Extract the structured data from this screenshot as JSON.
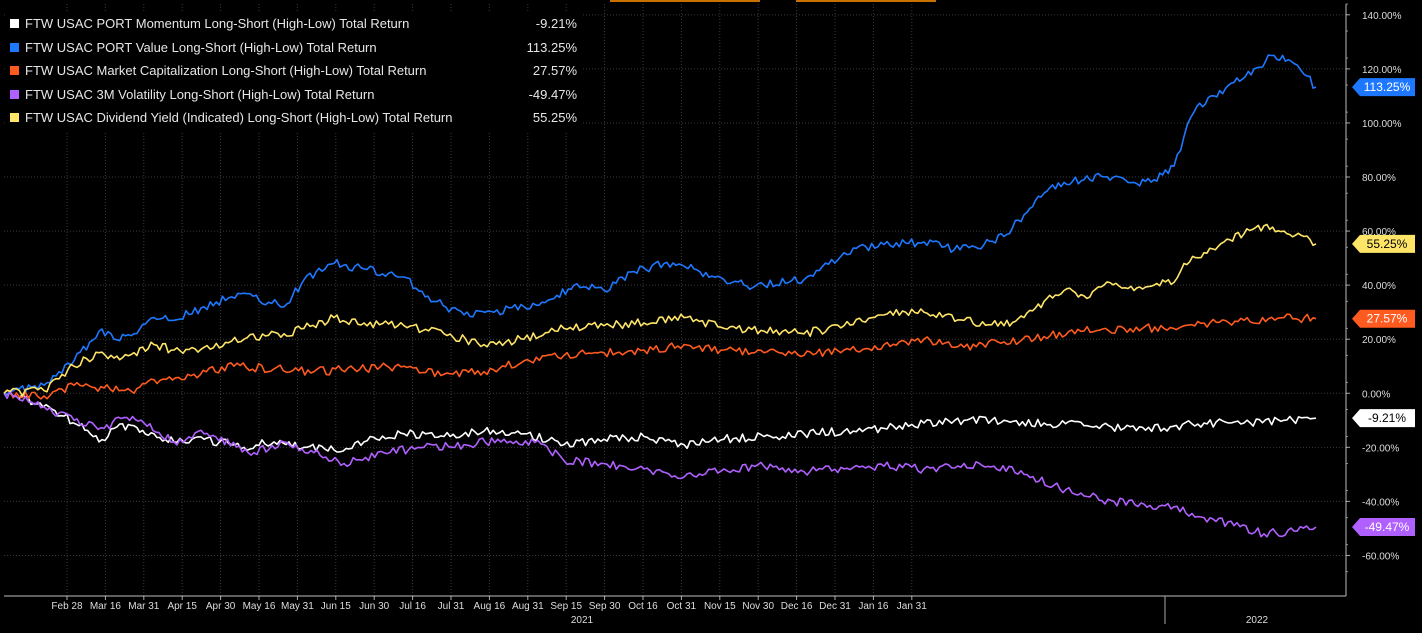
{
  "chart_data": {
    "type": "line",
    "x_ticks": [
      "Feb 28",
      "Mar 16",
      "Mar 31",
      "Apr 15",
      "Apr 30",
      "May 16",
      "May 31",
      "Jun 15",
      "Jun 30",
      "Jul 16",
      "Jul 31",
      "Aug 16",
      "Aug 31",
      "Sep 15",
      "Sep 30",
      "Oct 16",
      "Oct 31",
      "Nov 15",
      "Nov 30",
      "Dec 16",
      "Dec 31",
      "Jan 16",
      "Jan 31"
    ],
    "year_labels": [
      "2021",
      "2022"
    ],
    "y_ticks": [
      "140.00%",
      "120.00%",
      "100.00%",
      "80.00%",
      "60.00%",
      "40.00%",
      "20.00%",
      "0.00%",
      "-20.00%",
      "-40.00%",
      "-60.00%"
    ],
    "ylim": [
      -75,
      144
    ],
    "grid": true,
    "legend_position": "top-left",
    "series": [
      {
        "name": "FTW USAC PORT Momentum Long-Short (High-Low) Total Return",
        "value_label": "-9.21%",
        "color": "#ffffff",
        "points": [
          [
            0,
            0
          ],
          [
            45,
            -5
          ],
          [
            75,
            -12
          ],
          [
            95,
            -18
          ],
          [
            110,
            -13
          ],
          [
            130,
            -12
          ],
          [
            150,
            -15
          ],
          [
            170,
            -18
          ],
          [
            200,
            -17
          ],
          [
            240,
            -20
          ],
          [
            270,
            -18
          ],
          [
            300,
            -20
          ],
          [
            330,
            -21
          ],
          [
            360,
            -18
          ],
          [
            400,
            -15
          ],
          [
            440,
            -16
          ],
          [
            480,
            -14
          ],
          [
            520,
            -15
          ],
          [
            560,
            -19
          ],
          [
            600,
            -17
          ],
          [
            640,
            -16
          ],
          [
            680,
            -19
          ],
          [
            720,
            -17
          ],
          [
            760,
            -16
          ],
          [
            800,
            -15
          ],
          [
            840,
            -14
          ],
          [
            880,
            -13
          ],
          [
            920,
            -11
          ],
          [
            960,
            -10
          ],
          [
            1000,
            -10
          ],
          [
            1040,
            -11
          ],
          [
            1080,
            -12
          ],
          [
            1120,
            -13
          ],
          [
            1160,
            -13
          ],
          [
            1200,
            -11
          ],
          [
            1240,
            -11
          ],
          [
            1280,
            -10
          ],
          [
            1312,
            -9.21
          ]
        ]
      },
      {
        "name": "FTW USAC PORT Value Long-Short (High-Low) Total Return",
        "value_label": "113.25%",
        "color": "#1e78ff",
        "points": [
          [
            0,
            0
          ],
          [
            40,
            3
          ],
          [
            70,
            12
          ],
          [
            95,
            23
          ],
          [
            110,
            20
          ],
          [
            130,
            22
          ],
          [
            150,
            28
          ],
          [
            170,
            27
          ],
          [
            200,
            32
          ],
          [
            240,
            37
          ],
          [
            280,
            32
          ],
          [
            300,
            42
          ],
          [
            330,
            48
          ],
          [
            360,
            46
          ],
          [
            400,
            43
          ],
          [
            430,
            34
          ],
          [
            460,
            29
          ],
          [
            490,
            30
          ],
          [
            520,
            32
          ],
          [
            550,
            35
          ],
          [
            570,
            40
          ],
          [
            600,
            38
          ],
          [
            630,
            45
          ],
          [
            660,
            48
          ],
          [
            690,
            46
          ],
          [
            720,
            42
          ],
          [
            740,
            40
          ],
          [
            760,
            40
          ],
          [
            800,
            42
          ],
          [
            840,
            52
          ],
          [
            880,
            55
          ],
          [
            920,
            56
          ],
          [
            950,
            53
          ],
          [
            980,
            55
          ],
          [
            1000,
            58
          ],
          [
            1020,
            66
          ],
          [
            1040,
            74
          ],
          [
            1060,
            78
          ],
          [
            1080,
            79
          ],
          [
            1100,
            80
          ],
          [
            1130,
            78
          ],
          [
            1150,
            79
          ],
          [
            1170,
            84
          ],
          [
            1180,
            95
          ],
          [
            1190,
            104
          ],
          [
            1210,
            110
          ],
          [
            1230,
            115
          ],
          [
            1250,
            120
          ],
          [
            1270,
            125
          ],
          [
            1290,
            122
          ],
          [
            1300,
            118
          ],
          [
            1312,
            113.25
          ]
        ]
      },
      {
        "name": "FTW USAC Market Capitalization Long-Short (High-Low) Total Return",
        "value_label": "27.57%",
        "color": "#ff5a1f",
        "points": [
          [
            0,
            0
          ],
          [
            40,
            -1
          ],
          [
            70,
            3
          ],
          [
            100,
            2
          ],
          [
            130,
            0
          ],
          [
            150,
            5
          ],
          [
            190,
            7
          ],
          [
            230,
            10
          ],
          [
            270,
            9
          ],
          [
            310,
            8
          ],
          [
            350,
            9
          ],
          [
            400,
            10
          ],
          [
            440,
            7
          ],
          [
            480,
            8
          ],
          [
            520,
            12
          ],
          [
            560,
            14
          ],
          [
            600,
            15
          ],
          [
            640,
            16
          ],
          [
            680,
            18
          ],
          [
            720,
            16
          ],
          [
            760,
            15
          ],
          [
            800,
            14
          ],
          [
            840,
            16
          ],
          [
            880,
            18
          ],
          [
            920,
            20
          ],
          [
            960,
            17
          ],
          [
            1000,
            19
          ],
          [
            1040,
            21
          ],
          [
            1080,
            23
          ],
          [
            1120,
            24
          ],
          [
            1160,
            24
          ],
          [
            1200,
            26
          ],
          [
            1240,
            27
          ],
          [
            1280,
            28
          ],
          [
            1312,
            27.57
          ]
        ]
      },
      {
        "name": "FTW USAC 3M Volatility Long-Short (High-Low) Total Return",
        "value_label": "-49.47%",
        "color": "#b060ff",
        "points": [
          [
            0,
            0
          ],
          [
            40,
            -5
          ],
          [
            70,
            -10
          ],
          [
            100,
            -13
          ],
          [
            120,
            -9
          ],
          [
            140,
            -11
          ],
          [
            170,
            -18
          ],
          [
            200,
            -15
          ],
          [
            250,
            -22
          ],
          [
            280,
            -18
          ],
          [
            310,
            -22
          ],
          [
            340,
            -26
          ],
          [
            380,
            -22
          ],
          [
            420,
            -20
          ],
          [
            460,
            -19
          ],
          [
            500,
            -17
          ],
          [
            540,
            -19
          ],
          [
            560,
            -25
          ],
          [
            600,
            -26
          ],
          [
            640,
            -28
          ],
          [
            680,
            -31
          ],
          [
            720,
            -28
          ],
          [
            760,
            -27
          ],
          [
            800,
            -29
          ],
          [
            840,
            -28
          ],
          [
            880,
            -27
          ],
          [
            920,
            -28
          ],
          [
            960,
            -26
          ],
          [
            990,
            -27
          ],
          [
            1020,
            -30
          ],
          [
            1050,
            -34
          ],
          [
            1080,
            -38
          ],
          [
            1110,
            -40
          ],
          [
            1140,
            -41
          ],
          [
            1170,
            -42
          ],
          [
            1200,
            -46
          ],
          [
            1230,
            -49
          ],
          [
            1260,
            -52
          ],
          [
            1290,
            -51
          ],
          [
            1312,
            -49.47
          ]
        ]
      },
      {
        "name": "FTW USAC Dividend Yield (Indicated) Long-Short (High-Low) Total Return",
        "value_label": "55.25%",
        "color": "#ffe567",
        "points": [
          [
            0,
            0
          ],
          [
            40,
            1
          ],
          [
            70,
            10
          ],
          [
            95,
            15
          ],
          [
            110,
            13
          ],
          [
            130,
            15
          ],
          [
            150,
            18
          ],
          [
            170,
            16
          ],
          [
            200,
            17
          ],
          [
            240,
            20
          ],
          [
            280,
            22
          ],
          [
            300,
            24
          ],
          [
            330,
            28
          ],
          [
            360,
            26
          ],
          [
            400,
            25
          ],
          [
            440,
            22
          ],
          [
            480,
            18
          ],
          [
            520,
            20
          ],
          [
            560,
            24
          ],
          [
            600,
            25
          ],
          [
            640,
            26
          ],
          [
            680,
            28
          ],
          [
            720,
            24
          ],
          [
            760,
            23
          ],
          [
            800,
            22
          ],
          [
            840,
            25
          ],
          [
            880,
            29
          ],
          [
            920,
            30
          ],
          [
            960,
            27
          ],
          [
            1000,
            25
          ],
          [
            1020,
            28
          ],
          [
            1040,
            34
          ],
          [
            1060,
            38
          ],
          [
            1080,
            36
          ],
          [
            1100,
            40
          ],
          [
            1130,
            38
          ],
          [
            1150,
            40
          ],
          [
            1170,
            41
          ],
          [
            1180,
            48
          ],
          [
            1200,
            52
          ],
          [
            1220,
            56
          ],
          [
            1240,
            59
          ],
          [
            1260,
            62
          ],
          [
            1280,
            60
          ],
          [
            1300,
            58
          ],
          [
            1312,
            55.25
          ]
        ]
      }
    ]
  }
}
